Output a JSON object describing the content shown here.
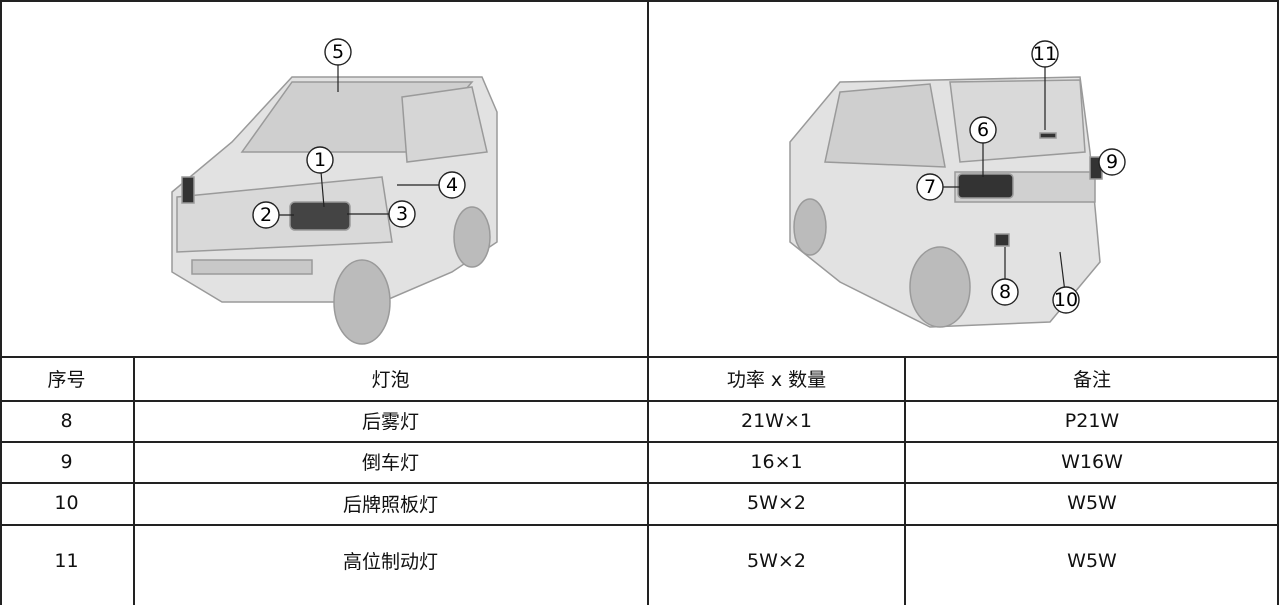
{
  "figures": [
    {
      "callouts": [
        "5",
        "1",
        "2",
        "3",
        "4"
      ]
    },
    {
      "callouts": [
        "11",
        "6",
        "9",
        "7",
        "8",
        "10"
      ]
    }
  ],
  "table": {
    "header": [
      "序号",
      "灯泡",
      "功率 x 数量",
      "备注"
    ],
    "rows": [
      [
        "8",
        "后雾灯",
        "21W×1",
        "P21W"
      ],
      [
        "9",
        "倒车灯",
        "16×1",
        "W16W"
      ],
      [
        "10",
        "后牌照板灯",
        "5W×2",
        "W5W"
      ],
      [
        "11",
        "高位制动灯",
        "5W×2",
        "W5W"
      ]
    ]
  }
}
